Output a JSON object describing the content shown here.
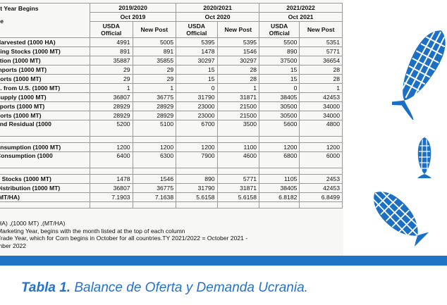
{
  "table": {
    "header_corner": [
      "ot Year Begins",
      "he"
    ],
    "years": [
      {
        "label": "2019/2020",
        "month": "Oct 2019"
      },
      {
        "label": "2020/2021",
        "month": "Oct 2020"
      },
      {
        "label": "2021/2022",
        "month": "Oct 2021"
      }
    ],
    "source_official": "USDA Official",
    "source_newpost": "New Post",
    "rows": [
      {
        "label": "Harvested (1000 HA)",
        "values": [
          "4991",
          "5005",
          "5395",
          "5395",
          "5500",
          "5351"
        ]
      },
      {
        "label": "ning Stocks (1000 MT)",
        "values": [
          "891",
          "891",
          "1478",
          "1546",
          "890",
          "5771"
        ]
      },
      {
        "label": "ction (1000 MT)",
        "values": [
          "35887",
          "35855",
          "30297",
          "30297",
          "37500",
          "36654"
        ]
      },
      {
        "label": "mports (1000 MT)",
        "values": [
          "29",
          "29",
          "15",
          "28",
          "15",
          "28"
        ]
      },
      {
        "label": "ports (1000 MT)",
        "values": [
          "29",
          "29",
          "15",
          "28",
          "15",
          "28"
        ]
      },
      {
        "label": "p. from U.S. (1000 MT)",
        "values": [
          "1",
          "1",
          "0",
          "1",
          "0",
          "1"
        ]
      },
      {
        "label": "Supply (1000 MT)",
        "values": [
          "36807",
          "36775",
          "31790",
          "31871",
          "38405",
          "42453"
        ]
      },
      {
        "label": "xports (1000 MT)",
        "values": [
          "28929",
          "28929",
          "23000",
          "21500",
          "30500",
          "34000"
        ]
      },
      {
        "label": "ports (1000 MT)",
        "values": [
          "28929",
          "28929",
          "23000",
          "21500",
          "30500",
          "34000"
        ]
      },
      {
        "label": "and Residual (1000",
        "values": [
          "5200",
          "5100",
          "6700",
          "3500",
          "5600",
          "4800"
        ],
        "tall": true
      },
      {
        "label": "onsumption (1000 MT)",
        "values": [
          "1200",
          "1200",
          "1200",
          "1100",
          "1200",
          "1200"
        ]
      },
      {
        "label": "Consumption (1000",
        "values": [
          "6400",
          "6300",
          "7900",
          "4600",
          "6800",
          "6000"
        ],
        "tall": true
      },
      {
        "label": "g Stocks (1000 MT)",
        "values": [
          "1478",
          "1546",
          "890",
          "5771",
          "1105",
          "2453"
        ]
      },
      {
        "label": "Distribution (1000 MT)",
        "values": [
          "36807",
          "36775",
          "31790",
          "31871",
          "38405",
          "42453"
        ]
      },
      {
        "label": "(MT/HA)",
        "values": [
          "7.1903",
          "7.1638",
          "5.6158",
          "5.6158",
          "6.8182",
          "6.8499"
        ]
      }
    ],
    "notes": [
      "HA) ,(1000 MT) ,(MT/HA)",
      "Marketing Year, begins with the month listed at the top of each column",
      "Trade Year, which for Corn begins in October for all countries.TY 2021/2022 = October 2021 -",
      "mber 2022"
    ]
  },
  "caption": {
    "bold": "Tabla 1.",
    "text": " Balance de Oferta y Demanda Ucrania."
  },
  "colors": {
    "accent": "#1f74c7",
    "caption": "#2572c9",
    "icon": "#1b6fc4"
  },
  "icons": [
    "corn-icon",
    "corn-icon",
    "corn-icon"
  ]
}
